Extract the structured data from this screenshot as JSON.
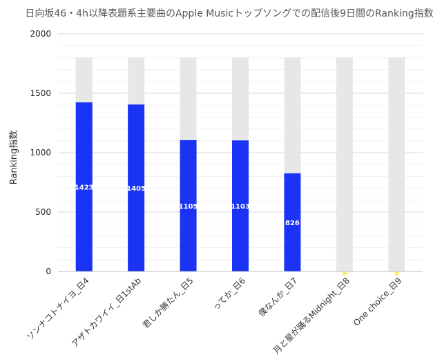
{
  "chart_data": {
    "type": "bar",
    "title": "日向坂46・4h以降表題系主要曲のApple Musicトップソングでの配信後9日間のRanking指数",
    "xlabel": "",
    "ylabel": "Ranking指数",
    "ylim": [
      0,
      2000
    ],
    "yticks": [
      0,
      500,
      1000,
      1500,
      2000
    ],
    "grid": true,
    "legend": "none",
    "categories": [
      "ソンナコトナイヨ_日4",
      "アザトカワイイ_日1stAb",
      "君しか勝たん_日5",
      "ってか_日6",
      "僕なんか_日7",
      "月と星が踊るMidnight_日8",
      "One choice_日9"
    ],
    "max_value": 1800,
    "values": [
      1423,
      1405,
      1105,
      1103,
      826,
      0,
      0
    ],
    "data_labels": [
      "1423",
      "1405",
      "1105",
      "1103",
      "826",
      "",
      ""
    ],
    "colors": {
      "bar": "#1a33f5",
      "background_bar": "#e7e7e7",
      "marker": "#f7f25a",
      "grid": "#e3e3e3",
      "axis": "#bfbfbf"
    }
  }
}
